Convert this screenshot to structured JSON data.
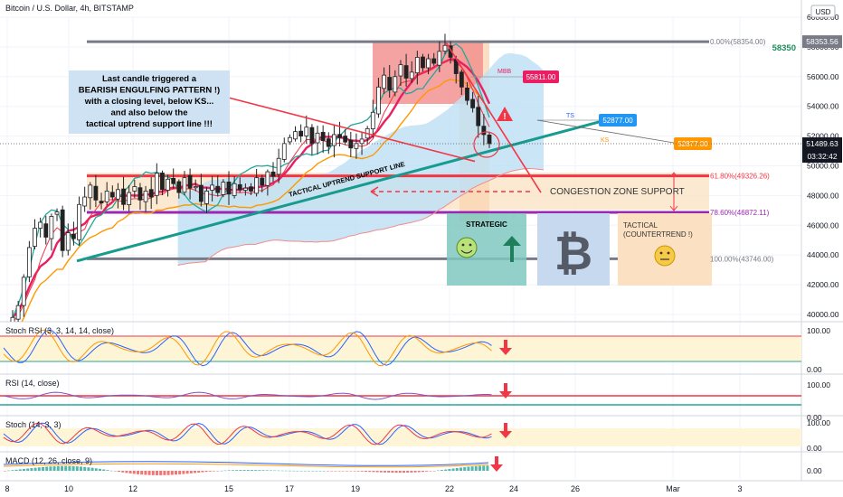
{
  "header": {
    "title": "Bitcoin / U.S. Dollar, 4h, BITSTAMP",
    "currency": "USD"
  },
  "annotations": {
    "note_lines": [
      "Last candle triggered a",
      "BEARISH ENGULFING PATTERN !)",
      "with a closing level, below KS...",
      "and also below the",
      "tactical uptrend support line !!!"
    ],
    "trendline_label": "TACTICAL UPTREND SUPPORT LINE",
    "congestion_label": "CONGESTION ZONE SUPPORT",
    "strategic_label": "STRATEGIC",
    "tactical_label_1": "TACTICAL",
    "tactical_label_2": "(COUNTERTREND !)",
    "mbb_label": "MBB",
    "mbb_value": "55811.00",
    "ts_label": "TS",
    "ts_value": "52877.00",
    "ks_label": "KS",
    "ks_value": "52877.00",
    "price_target": "58350",
    "warning_symbol": "!"
  },
  "fib_levels": [
    {
      "label": "0.00%(58354.00)",
      "price": 58354,
      "color": "#787b86"
    },
    {
      "label": "61.80%(49326.26)",
      "price": 49326.26,
      "color": "#f23645"
    },
    {
      "label": "78.60%(46872.11)",
      "price": 46872.11,
      "color": "#9c27b0"
    },
    {
      "label": "100.00%(43746.00)",
      "price": 43746,
      "color": "#787b86"
    }
  ],
  "price_axis": {
    "ticks": [
      "60000.00",
      "58000.00",
      "56000.00",
      "54000.00",
      "52000.00",
      "50000.00",
      "48000.00",
      "46000.00",
      "44000.00",
      "42000.00",
      "40000.00"
    ],
    "tick_values": [
      60000,
      58000,
      56000,
      54000,
      52000,
      50000,
      48000,
      46000,
      44000,
      42000,
      40000
    ],
    "high_badge": "58353.56",
    "last_price": "51489.63",
    "countdown": "03:32:42"
  },
  "time_axis": {
    "ticks": [
      "8",
      "10",
      "12",
      "15",
      "17",
      "19",
      "22",
      "24",
      "26",
      "Mar",
      "3"
    ]
  },
  "indicators": [
    {
      "name": "Stoch RSI (3, 3, 14, 14, close)",
      "ticks": [
        "100.00",
        "0.00"
      ]
    },
    {
      "name": "RSI (14, close)",
      "ticks": [
        "100.00",
        "0.00"
      ]
    },
    {
      "name": "Stoch (14, 3, 3)",
      "ticks": [
        "100.00",
        "0.00"
      ]
    },
    {
      "name": "MACD (12, 26, close, 9)",
      "ticks": [
        "0.00"
      ]
    }
  ],
  "chart_data": {
    "type": "candlestick",
    "title": "Bitcoin / U.S. Dollar, 4h, BITSTAMP",
    "x_ticks": [
      "8",
      "10",
      "12",
      "15",
      "17",
      "19",
      "22",
      "24",
      "26",
      "Mar",
      "3"
    ],
    "ylim": [
      38800,
      61000
    ],
    "close_path": [
      39800,
      40600,
      42500,
      44500,
      45800,
      46200,
      45200,
      46600,
      46900,
      44300,
      45500,
      45100,
      47400,
      47900,
      48700,
      47700,
      47500,
      48300,
      47900,
      48400,
      47400,
      48200,
      48600,
      47700,
      48300,
      47900,
      49500,
      48400,
      49100,
      48800,
      48200,
      49200,
      48500,
      48600,
      47600,
      48300,
      48700,
      48200,
      48900,
      48100,
      48800,
      48400,
      48500,
      48300,
      49200,
      48700,
      49600,
      49300,
      50500,
      51500,
      51900,
      52300,
      52000,
      52600,
      51500,
      52200,
      51700,
      51300,
      52100,
      51900,
      51600,
      51200,
      51500,
      51800,
      52500,
      53600,
      55300,
      56100,
      55100,
      56000,
      56800,
      55900,
      56300,
      57300,
      56600,
      57200,
      56900,
      57700,
      58100,
      57300,
      56200,
      55300,
      54400,
      53900,
      52700,
      52100,
      51490
    ],
    "fibonacci": [
      {
        "ratio": "0.00%",
        "price": 58354
      },
      {
        "ratio": "61.80%",
        "price": 49326.26
      },
      {
        "ratio": "78.60%",
        "price": 46872.11
      },
      {
        "ratio": "100.00%",
        "price": 43746
      }
    ],
    "last_price": 51489.63,
    "high": 58353.56,
    "mbb": 55811,
    "tenkan_sen": 52877,
    "kijun_sen": 52877
  },
  "colors": {
    "bull": "#26a69a",
    "bear": "#ef5350",
    "candle": "#222222",
    "teal": "#26a69a",
    "pink": "#e91e63",
    "orange": "#ff9800",
    "red": "#f23645",
    "purple": "#9c27b0",
    "gray": "#787b86",
    "cloud": "#bfe0f5",
    "note_bg": "#cfe2f3"
  }
}
